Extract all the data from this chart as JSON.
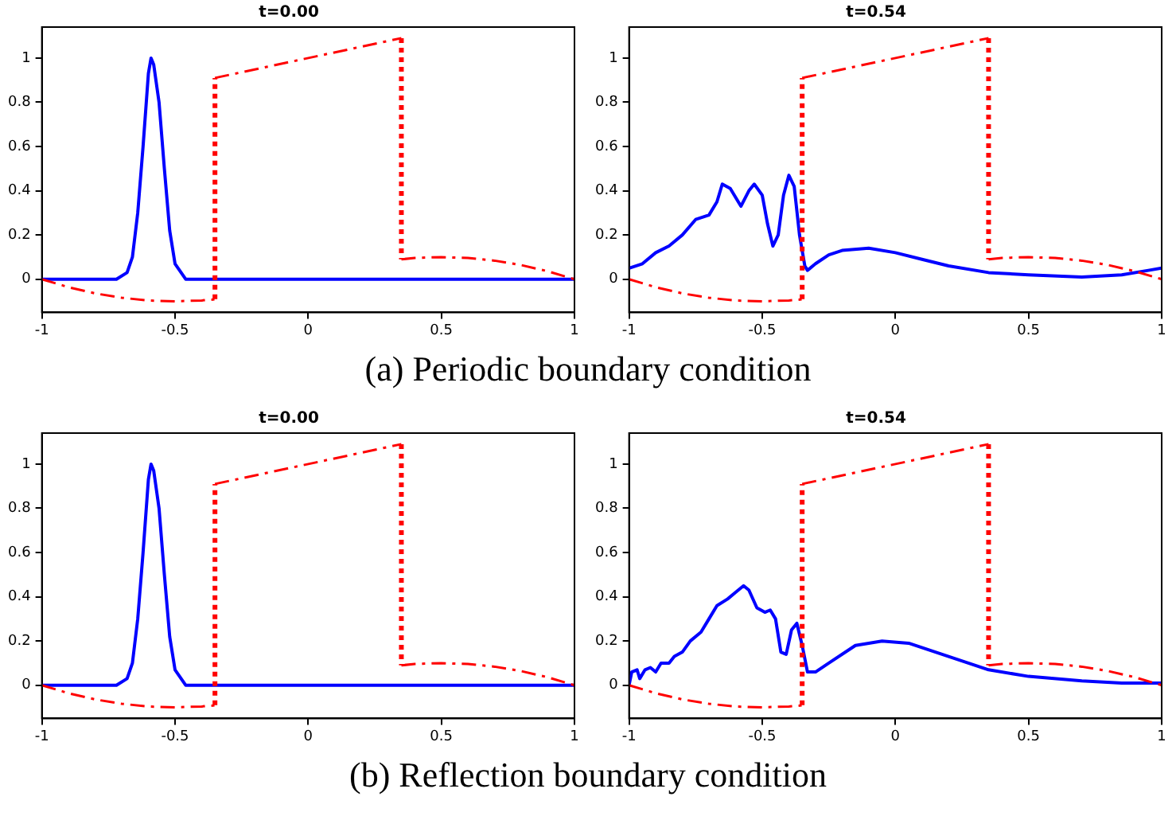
{
  "chart_data": [
    {
      "type": "line",
      "title": "t=0.00",
      "xlim": [
        -1,
        1
      ],
      "xticks": [
        -1,
        -0.5,
        0,
        0.5,
        1
      ],
      "ylim": [
        -0.15,
        1.14
      ],
      "yticks": [
        0,
        0.2,
        0.4,
        0.6,
        0.8,
        1
      ],
      "grid": false,
      "legend": false,
      "marker": "none",
      "annotations": [
        "(a) Periodic boundary condition"
      ],
      "series": [
        {
          "color": "#ff0000",
          "line_style": "dashed",
          "x": [
            -1,
            -0.9,
            -0.8,
            -0.7,
            -0.6,
            -0.5,
            -0.4,
            -0.35
          ],
          "values": [
            0,
            -0.036,
            -0.064,
            -0.084,
            -0.096,
            -0.1,
            -0.096,
            -0.091
          ]
        },
        {
          "color": "#ff0000",
          "line_style": "dashed",
          "x": [
            -0.35,
            0.35
          ],
          "values": [
            0.91,
            1.09
          ]
        },
        {
          "color": "#ff0000",
          "line_style": "dashed",
          "x": [
            0.35,
            0.4,
            0.5,
            0.6,
            0.7,
            0.8,
            0.9,
            1
          ],
          "values": [
            0.09,
            0.096,
            0.1,
            0.096,
            0.084,
            0.064,
            0.036,
            0
          ]
        },
        {
          "color": "#ff0000",
          "line_style": "dotted",
          "x": [
            -0.35,
            -0.35
          ],
          "values": [
            -0.09,
            0.91
          ]
        },
        {
          "color": "#ff0000",
          "line_style": "dotted",
          "x": [
            0.35,
            0.35
          ],
          "values": [
            1.09,
            0.09
          ]
        },
        {
          "color": "#0000ff",
          "line_style": "solid",
          "x": [
            -1,
            -0.72,
            -0.68,
            -0.66,
            -0.64,
            -0.62,
            -0.6,
            -0.59,
            -0.58,
            -0.56,
            -0.54,
            -0.52,
            -0.5,
            -0.46,
            1
          ],
          "values": [
            0,
            0,
            0.03,
            0.1,
            0.3,
            0.6,
            0.93,
            1,
            0.97,
            0.8,
            0.5,
            0.22,
            0.07,
            0,
            0
          ]
        }
      ]
    },
    {
      "type": "line",
      "title": "t=0.54",
      "xlim": [
        -1,
        1
      ],
      "xticks": [
        -1,
        -0.5,
        0,
        0.5,
        1
      ],
      "ylim": [
        -0.15,
        1.14
      ],
      "yticks": [
        0,
        0.2,
        0.4,
        0.6,
        0.8,
        1
      ],
      "grid": false,
      "legend": false,
      "marker": "none",
      "series": [
        {
          "color": "#ff0000",
          "line_style": "dashed",
          "x": [
            -1,
            -0.9,
            -0.8,
            -0.7,
            -0.6,
            -0.5,
            -0.4,
            -0.35
          ],
          "values": [
            0,
            -0.036,
            -0.064,
            -0.084,
            -0.096,
            -0.1,
            -0.096,
            -0.091
          ]
        },
        {
          "color": "#ff0000",
          "line_style": "dashed",
          "x": [
            -0.35,
            0.35
          ],
          "values": [
            0.91,
            1.09
          ]
        },
        {
          "color": "#ff0000",
          "line_style": "dashed",
          "x": [
            0.35,
            0.4,
            0.5,
            0.6,
            0.7,
            0.8,
            0.9,
            1
          ],
          "values": [
            0.09,
            0.096,
            0.1,
            0.096,
            0.084,
            0.064,
            0.036,
            0
          ]
        },
        {
          "color": "#ff0000",
          "line_style": "dotted",
          "x": [
            -0.35,
            -0.35
          ],
          "values": [
            -0.09,
            0.91
          ]
        },
        {
          "color": "#ff0000",
          "line_style": "dotted",
          "x": [
            0.35,
            0.35
          ],
          "values": [
            1.09,
            0.09
          ]
        },
        {
          "color": "#0000ff",
          "line_style": "solid",
          "x": [
            -1,
            -0.95,
            -0.9,
            -0.85,
            -0.8,
            -0.75,
            -0.7,
            -0.67,
            -0.65,
            -0.62,
            -0.58,
            -0.55,
            -0.53,
            -0.5,
            -0.48,
            -0.46,
            -0.44,
            -0.42,
            -0.4,
            -0.38,
            -0.36,
            -0.34,
            -0.33,
            -0.3,
            -0.25,
            -0.2,
            -0.1,
            0,
            0.1,
            0.2,
            0.35,
            0.5,
            0.7,
            0.85,
            0.95,
            1
          ],
          "values": [
            0.05,
            0.07,
            0.12,
            0.15,
            0.2,
            0.27,
            0.29,
            0.35,
            0.43,
            0.41,
            0.33,
            0.4,
            0.43,
            0.38,
            0.25,
            0.15,
            0.2,
            0.38,
            0.47,
            0.42,
            0.2,
            0.06,
            0.04,
            0.07,
            0.11,
            0.13,
            0.14,
            0.12,
            0.09,
            0.06,
            0.03,
            0.02,
            0.01,
            0.02,
            0.04,
            0.05
          ]
        }
      ]
    },
    {
      "type": "line",
      "title": "t=0.00",
      "xlim": [
        -1,
        1
      ],
      "xticks": [
        -1,
        -0.5,
        0,
        0.5,
        1
      ],
      "ylim": [
        -0.15,
        1.14
      ],
      "yticks": [
        0,
        0.2,
        0.4,
        0.6,
        0.8,
        1
      ],
      "grid": false,
      "legend": false,
      "marker": "none",
      "annotations": [
        "(b) Reflection boundary condition"
      ],
      "series": [
        {
          "color": "#ff0000",
          "line_style": "dashed",
          "x": [
            -1,
            -0.9,
            -0.8,
            -0.7,
            -0.6,
            -0.5,
            -0.4,
            -0.35
          ],
          "values": [
            0,
            -0.036,
            -0.064,
            -0.084,
            -0.096,
            -0.1,
            -0.096,
            -0.091
          ]
        },
        {
          "color": "#ff0000",
          "line_style": "dashed",
          "x": [
            -0.35,
            0.35
          ],
          "values": [
            0.91,
            1.09
          ]
        },
        {
          "color": "#ff0000",
          "line_style": "dashed",
          "x": [
            0.35,
            0.4,
            0.5,
            0.6,
            0.7,
            0.8,
            0.9,
            1
          ],
          "values": [
            0.09,
            0.096,
            0.1,
            0.096,
            0.084,
            0.064,
            0.036,
            0
          ]
        },
        {
          "color": "#ff0000",
          "line_style": "dotted",
          "x": [
            -0.35,
            -0.35
          ],
          "values": [
            -0.09,
            0.91
          ]
        },
        {
          "color": "#ff0000",
          "line_style": "dotted",
          "x": [
            0.35,
            0.35
          ],
          "values": [
            1.09,
            0.09
          ]
        },
        {
          "color": "#0000ff",
          "line_style": "solid",
          "x": [
            -1,
            -0.72,
            -0.68,
            -0.66,
            -0.64,
            -0.62,
            -0.6,
            -0.59,
            -0.58,
            -0.56,
            -0.54,
            -0.52,
            -0.5,
            -0.46,
            1
          ],
          "values": [
            0,
            0,
            0.03,
            0.1,
            0.3,
            0.6,
            0.93,
            1,
            0.97,
            0.8,
            0.5,
            0.22,
            0.07,
            0,
            0
          ]
        }
      ]
    },
    {
      "type": "line",
      "title": "t=0.54",
      "xlim": [
        -1,
        1
      ],
      "xticks": [
        -1,
        -0.5,
        0,
        0.5,
        1
      ],
      "ylim": [
        -0.15,
        1.14
      ],
      "yticks": [
        0,
        0.2,
        0.4,
        0.6,
        0.8,
        1
      ],
      "grid": false,
      "legend": false,
      "marker": "none",
      "series": [
        {
          "color": "#ff0000",
          "line_style": "dashed",
          "x": [
            -1,
            -0.9,
            -0.8,
            -0.7,
            -0.6,
            -0.5,
            -0.4,
            -0.35
          ],
          "values": [
            0,
            -0.036,
            -0.064,
            -0.084,
            -0.096,
            -0.1,
            -0.096,
            -0.091
          ]
        },
        {
          "color": "#ff0000",
          "line_style": "dashed",
          "x": [
            -0.35,
            0.35
          ],
          "values": [
            0.91,
            1.09
          ]
        },
        {
          "color": "#ff0000",
          "line_style": "dashed",
          "x": [
            0.35,
            0.4,
            0.5,
            0.6,
            0.7,
            0.8,
            0.9,
            1
          ],
          "values": [
            0.09,
            0.096,
            0.1,
            0.096,
            0.084,
            0.064,
            0.036,
            0
          ]
        },
        {
          "color": "#ff0000",
          "line_style": "dotted",
          "x": [
            -0.35,
            -0.35
          ],
          "values": [
            -0.09,
            0.91
          ]
        },
        {
          "color": "#ff0000",
          "line_style": "dotted",
          "x": [
            0.35,
            0.35
          ],
          "values": [
            1.09,
            0.09
          ]
        },
        {
          "color": "#0000ff",
          "line_style": "solid",
          "x": [
            -1,
            -0.99,
            -0.97,
            -0.96,
            -0.94,
            -0.92,
            -0.9,
            -0.88,
            -0.85,
            -0.83,
            -0.8,
            -0.77,
            -0.73,
            -0.7,
            -0.67,
            -0.63,
            -0.6,
            -0.57,
            -0.55,
            -0.52,
            -0.49,
            -0.47,
            -0.45,
            -0.43,
            -0.41,
            -0.39,
            -0.37,
            -0.35,
            -0.33,
            -0.3,
            -0.25,
            -0.15,
            -0.05,
            0.05,
            0.2,
            0.35,
            0.5,
            0.7,
            0.85,
            1
          ],
          "values": [
            0,
            0.06,
            0.07,
            0.03,
            0.07,
            0.08,
            0.06,
            0.1,
            0.1,
            0.13,
            0.15,
            0.2,
            0.24,
            0.3,
            0.36,
            0.39,
            0.42,
            0.45,
            0.43,
            0.35,
            0.33,
            0.34,
            0.3,
            0.15,
            0.14,
            0.25,
            0.28,
            0.18,
            0.06,
            0.06,
            0.1,
            0.18,
            0.2,
            0.19,
            0.13,
            0.07,
            0.04,
            0.02,
            0.01,
            0.01
          ]
        }
      ]
    }
  ]
}
